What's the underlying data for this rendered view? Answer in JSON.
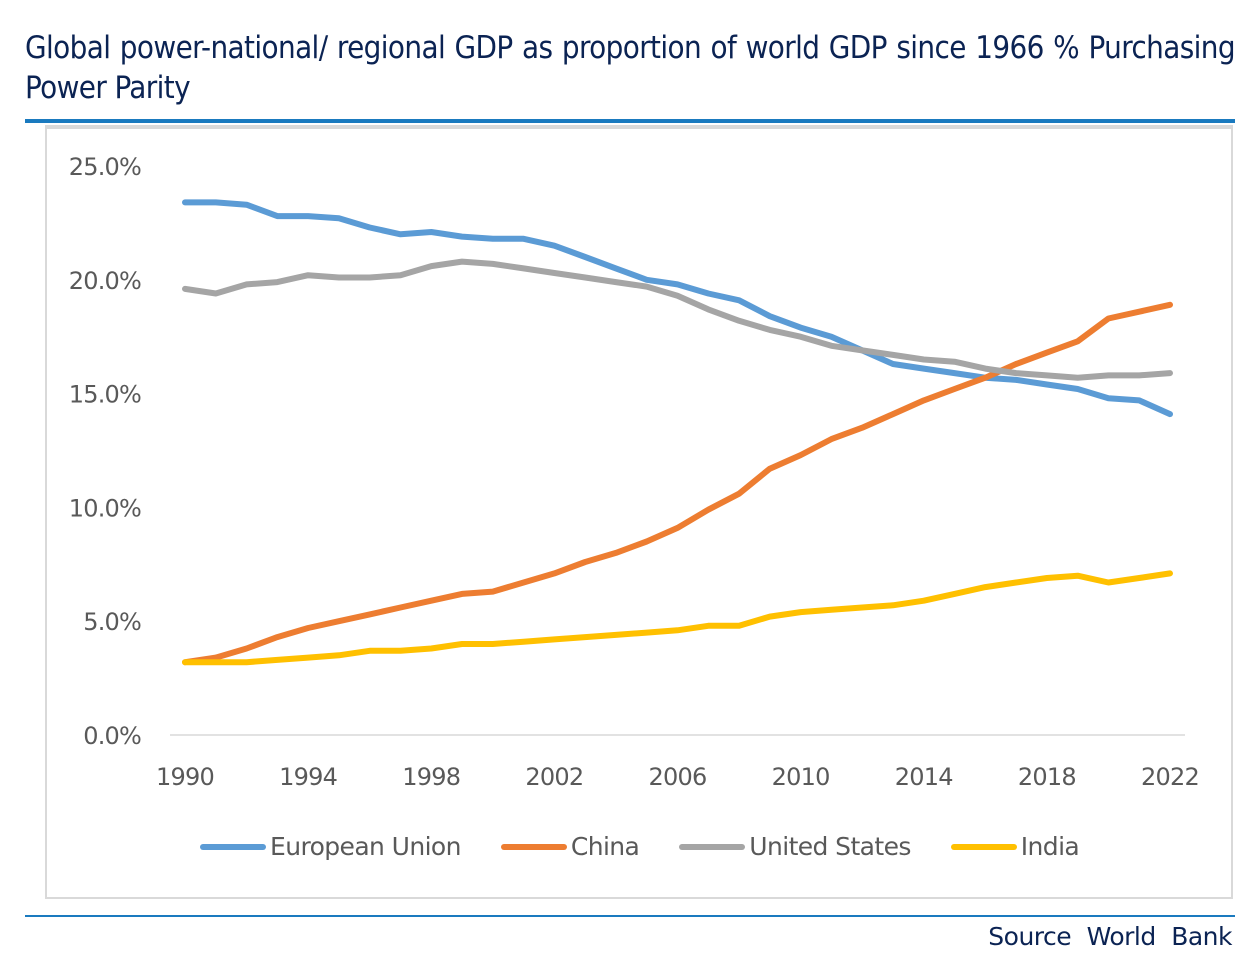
{
  "title": "Global power-national/ regional GDP as proportion of world GDP since 1966 % Purchasing Power Parity",
  "source": "Source World Bank",
  "chart_data": {
    "type": "line",
    "title": "Global power-national/ regional GDP as proportion of world GDP since 1966 % Purchasing Power Parity",
    "xlabel": "",
    "ylabel": "",
    "ylim": [
      0,
      25
    ],
    "xlim": [
      1990,
      2022
    ],
    "grid": false,
    "legend_position": "bottom",
    "y_ticks": [
      "0.0%",
      "5.0%",
      "10.0%",
      "15.0%",
      "20.0%",
      "25.0%"
    ],
    "y_tick_values": [
      0,
      5,
      10,
      15,
      20,
      25
    ],
    "x_ticks": [
      "1990",
      "1994",
      "1998",
      "2002",
      "2006",
      "2010",
      "2014",
      "2018",
      "2022"
    ],
    "x_tick_values": [
      1990,
      1994,
      1998,
      2002,
      2006,
      2010,
      2014,
      2018,
      2022
    ],
    "x": [
      1990,
      1991,
      1992,
      1993,
      1994,
      1995,
      1996,
      1997,
      1998,
      1999,
      2000,
      2001,
      2002,
      2003,
      2004,
      2005,
      2006,
      2007,
      2008,
      2009,
      2010,
      2011,
      2012,
      2013,
      2014,
      2015,
      2016,
      2017,
      2018,
      2019,
      2020,
      2021,
      2022
    ],
    "series": [
      {
        "name": "European Union",
        "color": "#5b9bd5",
        "values": [
          23.4,
          23.4,
          23.3,
          22.8,
          22.8,
          22.7,
          22.3,
          22.0,
          22.1,
          21.9,
          21.8,
          21.8,
          21.5,
          21.0,
          20.5,
          20.0,
          19.8,
          19.4,
          19.1,
          18.4,
          17.9,
          17.5,
          16.9,
          16.3,
          16.1,
          15.9,
          15.7,
          15.6,
          15.4,
          15.2,
          14.8,
          14.7,
          14.1
        ]
      },
      {
        "name": "China",
        "color": "#ed7d31",
        "values": [
          3.2,
          3.4,
          3.8,
          4.3,
          4.7,
          5.0,
          5.3,
          5.6,
          5.9,
          6.2,
          6.3,
          6.7,
          7.1,
          7.6,
          8.0,
          8.5,
          9.1,
          9.9,
          10.6,
          11.7,
          12.3,
          13.0,
          13.5,
          14.1,
          14.7,
          15.2,
          15.7,
          16.3,
          16.8,
          17.3,
          18.3,
          18.6,
          18.9
        ]
      },
      {
        "name": "United States",
        "color": "#a5a5a5",
        "values": [
          19.6,
          19.4,
          19.8,
          19.9,
          20.2,
          20.1,
          20.1,
          20.2,
          20.6,
          20.8,
          20.7,
          20.5,
          20.3,
          20.1,
          19.9,
          19.7,
          19.3,
          18.7,
          18.2,
          17.8,
          17.5,
          17.1,
          16.9,
          16.7,
          16.5,
          16.4,
          16.1,
          15.9,
          15.8,
          15.7,
          15.8,
          15.8,
          15.9
        ]
      },
      {
        "name": "India",
        "color": "#ffc000",
        "values": [
          3.2,
          3.2,
          3.2,
          3.3,
          3.4,
          3.5,
          3.7,
          3.7,
          3.8,
          4.0,
          4.0,
          4.1,
          4.2,
          4.3,
          4.4,
          4.5,
          4.6,
          4.8,
          4.8,
          5.2,
          5.4,
          5.5,
          5.6,
          5.7,
          5.9,
          6.2,
          6.5,
          6.7,
          6.9,
          7.0,
          6.7,
          6.9,
          7.1
        ]
      }
    ]
  }
}
